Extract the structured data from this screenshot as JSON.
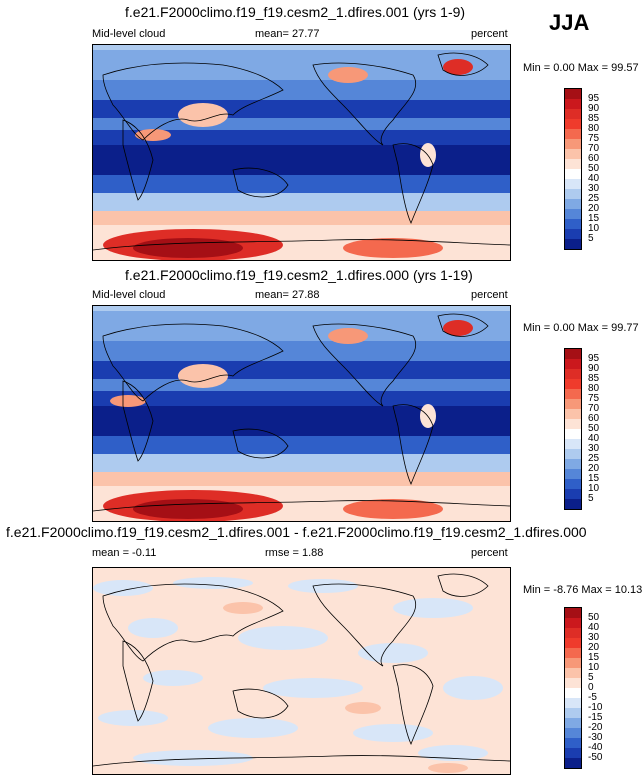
{
  "season": "JJA",
  "panels": [
    {
      "title": "f.e21.F2000climo.f19_f19.cesm2_1.dfires.001 (yrs 1-9)",
      "left_label": "Mid-level cloud",
      "stat_label": "mean=",
      "stat_value": "27.77",
      "units": "percent",
      "min_label": "Min =",
      "min_value": "0.00",
      "max_label": "Max =",
      "max_value": "99.57"
    },
    {
      "title": "f.e21.F2000climo.f19_f19.cesm2_1.dfires.000 (yrs 1-19)",
      "left_label": "Mid-level cloud",
      "stat_label": "mean=",
      "stat_value": "27.88",
      "units": "percent",
      "min_label": "Min =",
      "min_value": "0.00",
      "max_label": "Max =",
      "max_value": "99.77"
    },
    {
      "title": "f.e21.F2000climo.f19_f19.cesm2_1.dfires.001 - f.e21.F2000climo.f19_f19.cesm2_1.dfires.000",
      "left_label": "mean = -0.11",
      "stat_label": "rmse =",
      "stat_value": "1.88",
      "units": "percent",
      "min_label": "Min =",
      "min_value": "-8.76",
      "max_label": "Max =",
      "max_value": "10.13"
    }
  ],
  "colorbar_levels": [
    "95",
    "90",
    "85",
    "80",
    "75",
    "70",
    "60",
    "50",
    "40",
    "30",
    "25",
    "20",
    "15",
    "10",
    "5"
  ],
  "diff_colorbar_levels": [
    "50",
    "40",
    "30",
    "20",
    "15",
    "10",
    "5",
    "0",
    "-5",
    "-10",
    "-15",
    "-20",
    "-30",
    "-40",
    "-50"
  ],
  "colorbar_colors": [
    "#a50f15",
    "#cb181d",
    "#de2d26",
    "#ef3b2c",
    "#f4694e",
    "#f79878",
    "#fbc3aa",
    "#fde3d6",
    "#ffffff",
    "#d8e6f8",
    "#aecbef",
    "#7fa9e4",
    "#5586d8",
    "#2f5fc8",
    "#1a3db0",
    "#0b1f8a"
  ]
}
